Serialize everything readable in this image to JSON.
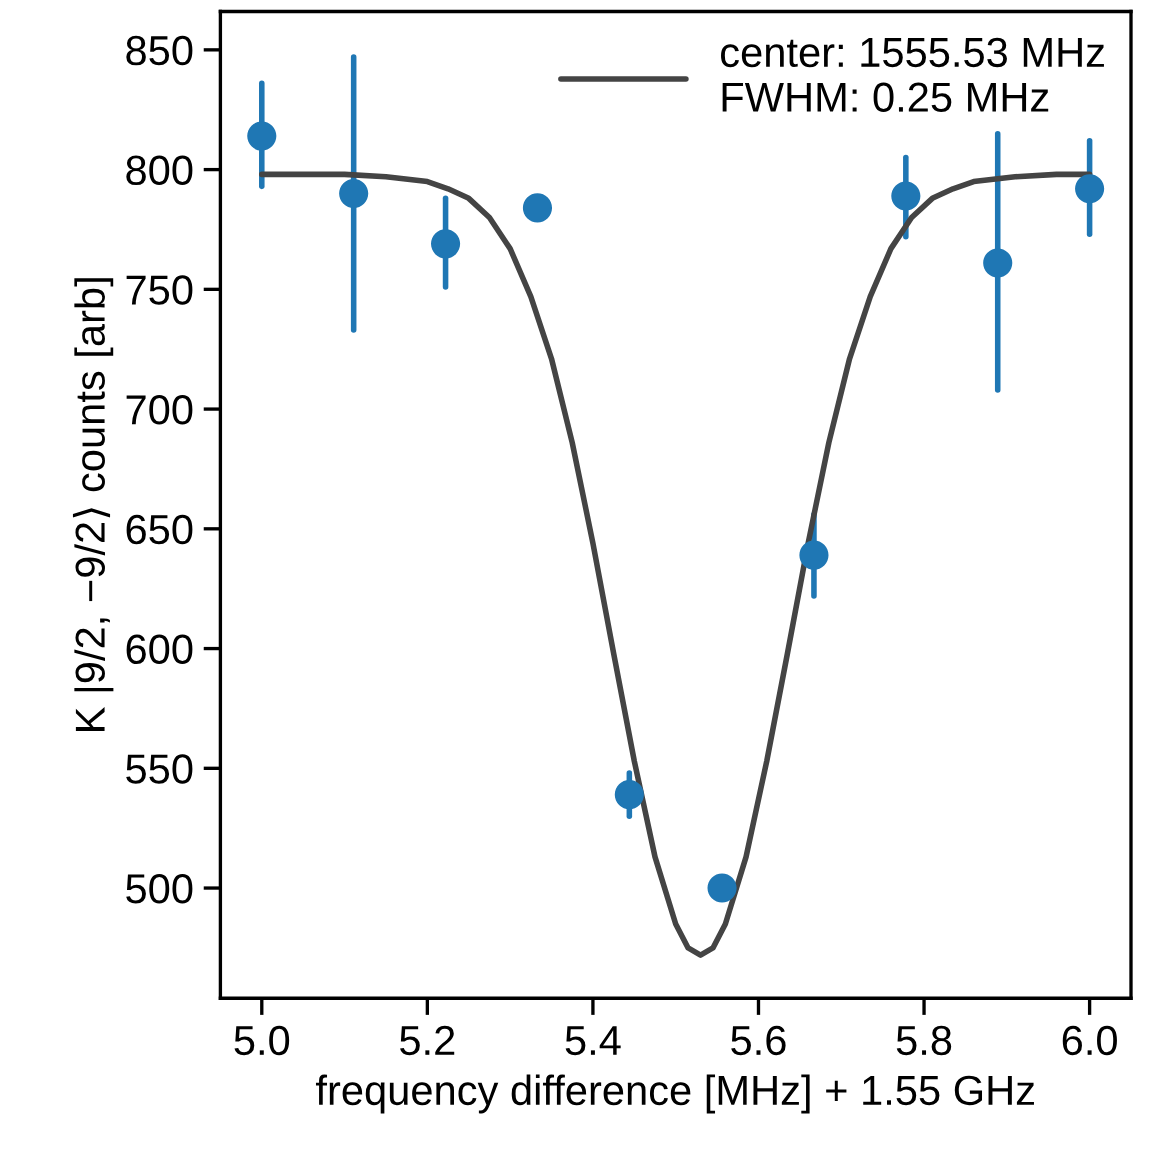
{
  "chart_data": {
    "type": "scatter",
    "xlabel": "frequency difference [MHz] + 1.55 GHz",
    "ylabel": "K |9/2, −9/2⟩ counts [arb]",
    "xlim": [
      4.95,
      6.05
    ],
    "ylim": [
      454,
      866
    ],
    "xticks": [
      {
        "value": 5.0,
        "label": "5.0"
      },
      {
        "value": 5.2,
        "label": "5.2"
      },
      {
        "value": 5.4,
        "label": "5.4"
      },
      {
        "value": 5.6,
        "label": "5.6"
      },
      {
        "value": 5.8,
        "label": "5.8"
      },
      {
        "value": 6.0,
        "label": "6.0"
      }
    ],
    "yticks": [
      500,
      550,
      600,
      650,
      700,
      750,
      800,
      850
    ],
    "legend": "top right",
    "grid": false,
    "series": [
      {
        "type": "line",
        "name": "center: 1555.53 MHz\nFWHM: 0.25 MHz",
        "color": "#444444",
        "marker": "none",
        "line_style": "solid",
        "x": [
          5.0,
          5.1,
          5.15,
          5.2,
          5.225,
          5.25,
          5.275,
          5.3,
          5.325,
          5.35,
          5.375,
          5.4,
          5.425,
          5.45,
          5.475,
          5.5,
          5.515,
          5.53,
          5.545,
          5.56,
          5.585,
          5.61,
          5.635,
          5.66,
          5.685,
          5.71,
          5.735,
          5.76,
          5.785,
          5.81,
          5.835,
          5.86,
          5.91,
          5.96,
          6.0
        ],
        "values": [
          798,
          798,
          797,
          795,
          792,
          788,
          780,
          767,
          747,
          721,
          686,
          644,
          598,
          553,
          513,
          485,
          475,
          472,
          475,
          485,
          513,
          553,
          598,
          644,
          686,
          721,
          747,
          767,
          780,
          788,
          792,
          795,
          797,
          798,
          798
        ]
      },
      {
        "color": "#1f77b4",
        "marker": "circle",
        "x": [
          5.0,
          5.111,
          5.222,
          5.333,
          5.444,
          5.556,
          5.667,
          5.778,
          5.889,
          6.0
        ],
        "values": [
          814,
          790,
          769,
          784,
          539,
          500,
          639,
          789,
          761,
          792
        ],
        "errors": [
          [
            793,
            836
          ],
          [
            733,
            847
          ],
          [
            751,
            788
          ],
          null,
          [
            530,
            548
          ],
          null,
          [
            622,
            656
          ],
          [
            772,
            805
          ],
          [
            708,
            815
          ],
          [
            773,
            812
          ]
        ]
      }
    ]
  }
}
